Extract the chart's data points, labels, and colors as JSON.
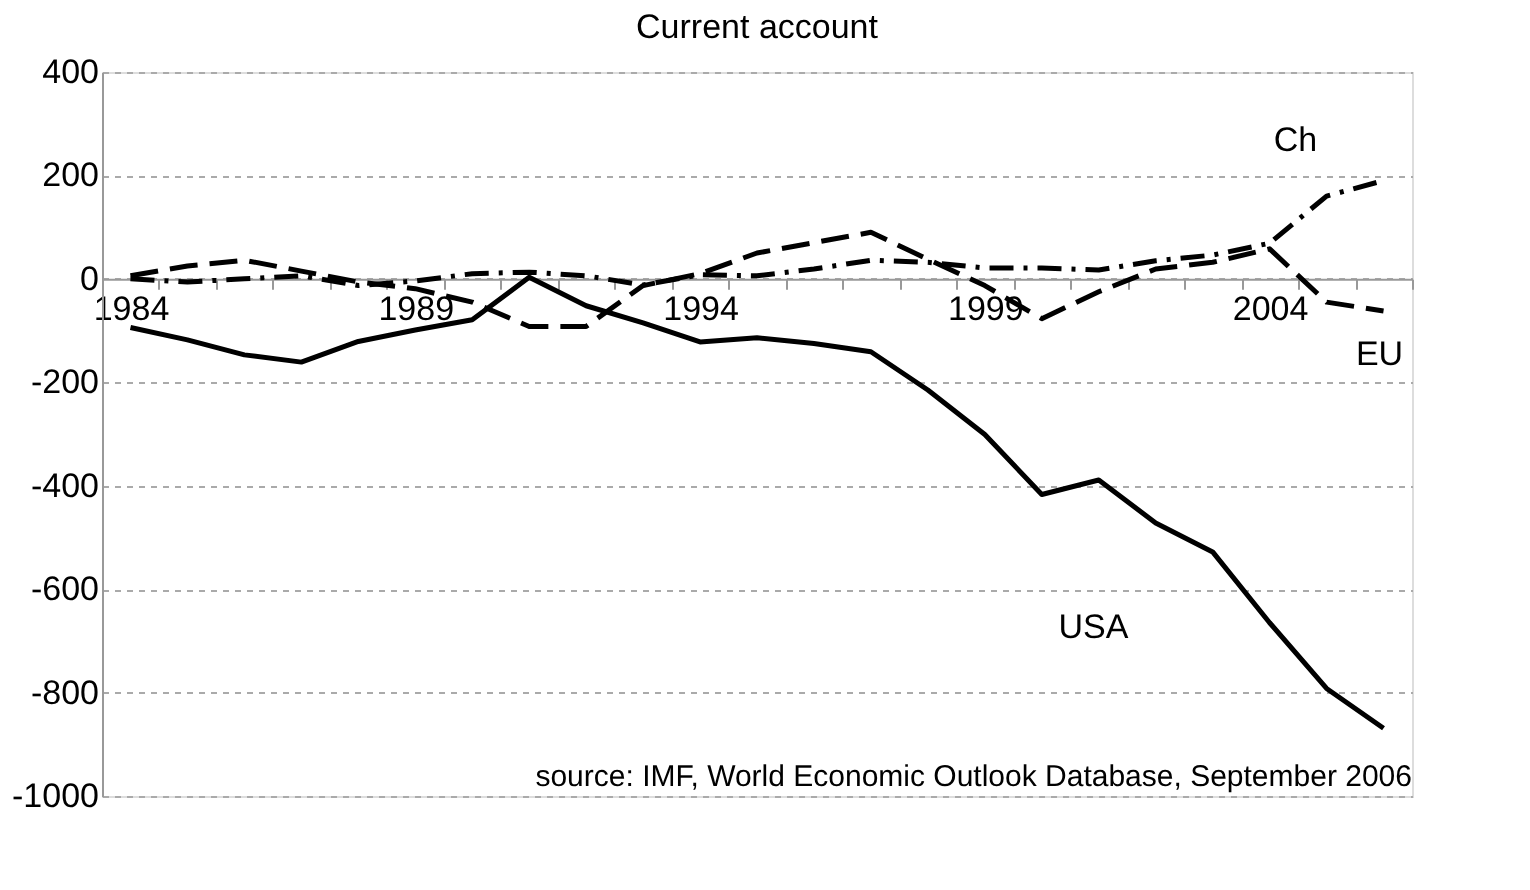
{
  "chart_data": {
    "type": "line",
    "title": "Current account",
    "categories": [
      "1984",
      null,
      null,
      null,
      null,
      "1989",
      null,
      null,
      null,
      null,
      "1994",
      null,
      null,
      null,
      null,
      "1999",
      null,
      null,
      null,
      null,
      "2004",
      null,
      null
    ],
    "series": [
      {
        "name": "USA",
        "color": "#000000",
        "line_style": "solid",
        "values": [
          -94,
          -118,
          -147,
          -161,
          -121,
          -99,
          -79,
          3,
          -52,
          -85,
          -122,
          -114,
          -125,
          -141,
          -215,
          -301,
          -417,
          -389,
          -472,
          -528,
          -665,
          -792,
          -869
        ]
      },
      {
        "name": "EU",
        "color": "#000000",
        "line_style": "dashed",
        "values": [
          6,
          25,
          36,
          15,
          -6,
          -19,
          -45,
          -92,
          -92,
          -13,
          10,
          50,
          70,
          90,
          38,
          -13,
          -77,
          -25,
          19,
          32,
          58,
          -45,
          -62
        ]
      },
      {
        "name": "Ch",
        "color": "#000000",
        "line_style": "dotted",
        "values": [
          0,
          -6,
          0,
          6,
          -13,
          -4,
          10,
          13,
          6,
          -12,
          8,
          6,
          19,
          36,
          32,
          21,
          21,
          17,
          35,
          46,
          69,
          160,
          190
        ]
      }
    ],
    "ylim": [
      -1000,
      400
    ],
    "yticks": [
      -1000,
      -800,
      -600,
      -400,
      -200,
      0,
      200,
      400
    ],
    "grid": "y",
    "annotations": [
      "source: IMF, World Economic Outlook Database, September 2006"
    ]
  }
}
